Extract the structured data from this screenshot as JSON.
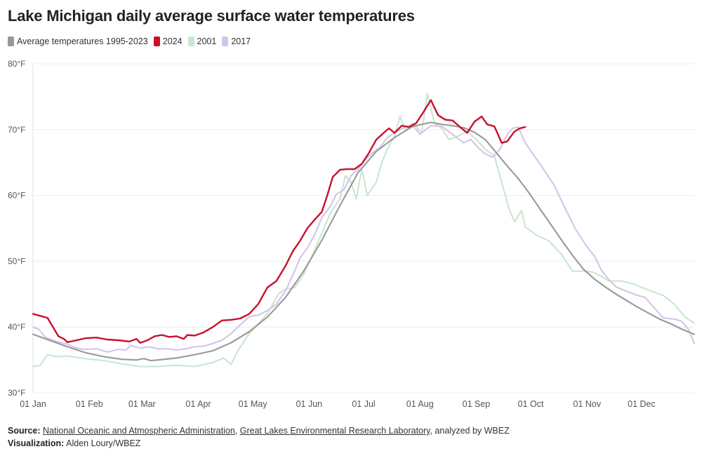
{
  "title": "Lake Michigan daily average surface water temperatures",
  "legend": [
    {
      "label": "Average temperatures 1995-2023",
      "color": "#999999"
    },
    {
      "label": "2024",
      "color": "#c8102e"
    },
    {
      "label": "2001",
      "color": "#c9e6cf"
    },
    {
      "label": "2017",
      "color": "#d5c4ea"
    }
  ],
  "footer": {
    "source_label": "Source:",
    "source_link_1": "National Oceanic and Atmospheric Administration",
    "separator": ", ",
    "source_link_2": "Great Lakes Environmental Research Laboratory",
    "source_suffix": ", analyzed by WBEZ",
    "viz_label": "Visualization:",
    "viz_credit": "Alden Loury/WBEZ"
  },
  "chart_data": {
    "type": "line",
    "xlabel": "",
    "ylabel": "",
    "x_type": "date",
    "xlim": [
      "01 Jan",
      "31 Dec"
    ],
    "ylim": [
      30,
      80
    ],
    "y_ticks": [
      30,
      40,
      50,
      60,
      70,
      80
    ],
    "y_tick_labels": [
      "30°F",
      "40°F",
      "50°F",
      "60°F",
      "70°F",
      "80°F"
    ],
    "x_ticks": [
      1,
      32,
      61,
      92,
      122,
      153,
      183,
      214,
      245,
      275,
      306,
      336
    ],
    "x_tick_labels": [
      "01 Jan",
      "01 Feb",
      "01 Mar",
      "01 Apr",
      "01 May",
      "01 Jun",
      "01 Jul",
      "01 Aug",
      "01 Sep",
      "01 Oct",
      "01 Nov",
      "01 Dec"
    ],
    "grid": true,
    "legend_position": "top-left",
    "series": [
      {
        "name": "2001",
        "color": "#c9e6cf",
        "points": [
          [
            1,
            34
          ],
          [
            5,
            34.2
          ],
          [
            9,
            35.8
          ],
          [
            14,
            35.5
          ],
          [
            20,
            35.6
          ],
          [
            30,
            35.2
          ],
          [
            40,
            34.9
          ],
          [
            50,
            34.4
          ],
          [
            60,
            34
          ],
          [
            70,
            34
          ],
          [
            80,
            34.2
          ],
          [
            90,
            34
          ],
          [
            100,
            34.6
          ],
          [
            106,
            35.3
          ],
          [
            110,
            34.3
          ],
          [
            114,
            36.5
          ],
          [
            120,
            39
          ],
          [
            125,
            40.5
          ],
          [
            130,
            42
          ],
          [
            136,
            45
          ],
          [
            140,
            45.8
          ],
          [
            145,
            46
          ],
          [
            150,
            48
          ],
          [
            155,
            51
          ],
          [
            160,
            54.3
          ],
          [
            165,
            57.5
          ],
          [
            170,
            59.5
          ],
          [
            173,
            63
          ],
          [
            176,
            62
          ],
          [
            179,
            59.5
          ],
          [
            182,
            64
          ],
          [
            185,
            60
          ],
          [
            190,
            62
          ],
          [
            193,
            65
          ],
          [
            196,
            67
          ],
          [
            200,
            69
          ],
          [
            203,
            72
          ],
          [
            206,
            70
          ],
          [
            210,
            71
          ],
          [
            212,
            70.5
          ],
          [
            215,
            69.5
          ],
          [
            218,
            75.5
          ],
          [
            222,
            71
          ],
          [
            226,
            70.2
          ],
          [
            230,
            68.5
          ],
          [
            235,
            69
          ],
          [
            240,
            69.8
          ],
          [
            245,
            68.5
          ],
          [
            250,
            67
          ],
          [
            255,
            66
          ],
          [
            258,
            63
          ],
          [
            261,
            60
          ],
          [
            263,
            58
          ],
          [
            266,
            56
          ],
          [
            270,
            57.7
          ],
          [
            272,
            55.2
          ],
          [
            278,
            54
          ],
          [
            285,
            53.1
          ],
          [
            292,
            51
          ],
          [
            298,
            48.5
          ],
          [
            305,
            48.5
          ],
          [
            310,
            48.3
          ],
          [
            318,
            47
          ],
          [
            325,
            47
          ],
          [
            332,
            46.5
          ],
          [
            340,
            45.6
          ],
          [
            348,
            44.8
          ],
          [
            354,
            43.5
          ],
          [
            360,
            41.5
          ],
          [
            365,
            40.6
          ]
        ]
      },
      {
        "name": "2017",
        "color": "#d5c4ea",
        "points": [
          [
            1,
            40
          ],
          [
            4,
            39.7
          ],
          [
            8,
            38.4
          ],
          [
            14,
            37.8
          ],
          [
            20,
            37.4
          ],
          [
            25,
            36.8
          ],
          [
            30,
            36.6
          ],
          [
            36,
            36.7
          ],
          [
            42,
            36.2
          ],
          [
            48,
            36.6
          ],
          [
            52,
            36.5
          ],
          [
            55,
            37.2
          ],
          [
            60,
            36.8
          ],
          [
            65,
            37
          ],
          [
            70,
            36.7
          ],
          [
            75,
            36.7
          ],
          [
            80,
            36.5
          ],
          [
            85,
            36.7
          ],
          [
            90,
            37
          ],
          [
            95,
            37.1
          ],
          [
            100,
            37.5
          ],
          [
            105,
            38
          ],
          [
            110,
            39
          ],
          [
            115,
            40.3
          ],
          [
            120,
            41.6
          ],
          [
            125,
            41.8
          ],
          [
            130,
            42.5
          ],
          [
            135,
            43.5
          ],
          [
            140,
            45.5
          ],
          [
            145,
            48.5
          ],
          [
            148,
            50.5
          ],
          [
            152,
            52
          ],
          [
            156,
            54
          ],
          [
            160,
            56.6
          ],
          [
            165,
            58.5
          ],
          [
            168,
            60.2
          ],
          [
            172,
            60.8
          ],
          [
            176,
            63
          ],
          [
            180,
            64
          ],
          [
            184,
            65.5
          ],
          [
            188,
            66.5
          ],
          [
            192,
            67.3
          ],
          [
            196,
            68.8
          ],
          [
            200,
            69.5
          ],
          [
            206,
            70.4
          ],
          [
            210,
            70.7
          ],
          [
            214,
            69.3
          ],
          [
            220,
            70.6
          ],
          [
            226,
            70.5
          ],
          [
            232,
            69.3
          ],
          [
            238,
            68
          ],
          [
            242,
            68.5
          ],
          [
            246,
            67.3
          ],
          [
            250,
            66.3
          ],
          [
            254,
            65.8
          ],
          [
            258,
            67
          ],
          [
            262,
            69.2
          ],
          [
            265,
            70.2
          ],
          [
            268,
            70.4
          ],
          [
            272,
            68
          ],
          [
            276,
            66.4
          ],
          [
            282,
            64
          ],
          [
            288,
            61.5
          ],
          [
            294,
            58
          ],
          [
            300,
            54.7
          ],
          [
            306,
            52.2
          ],
          [
            310,
            50.8
          ],
          [
            314,
            48.6
          ],
          [
            318,
            47.2
          ],
          [
            322,
            46.1
          ],
          [
            328,
            45.4
          ],
          [
            334,
            44.8
          ],
          [
            338,
            44.5
          ],
          [
            342,
            43.2
          ],
          [
            348,
            41.4
          ],
          [
            354,
            41.2
          ],
          [
            358,
            40.9
          ],
          [
            362,
            39.6
          ],
          [
            365,
            37.5
          ]
        ]
      },
      {
        "name": "Average temperatures 1995-2023",
        "color": "#999999",
        "points": [
          [
            1,
            38.9
          ],
          [
            10,
            38
          ],
          [
            20,
            37
          ],
          [
            30,
            36.1
          ],
          [
            40,
            35.5
          ],
          [
            50,
            35.1
          ],
          [
            58,
            35
          ],
          [
            62,
            35.2
          ],
          [
            66,
            34.9
          ],
          [
            70,
            35
          ],
          [
            80,
            35.3
          ],
          [
            90,
            35.8
          ],
          [
            100,
            36.4
          ],
          [
            110,
            37.6
          ],
          [
            120,
            39.3
          ],
          [
            130,
            41.5
          ],
          [
            140,
            44.5
          ],
          [
            150,
            48.5
          ],
          [
            160,
            53.2
          ],
          [
            170,
            58.5
          ],
          [
            180,
            63.5
          ],
          [
            190,
            66.7
          ],
          [
            200,
            68.8
          ],
          [
            210,
            70.5
          ],
          [
            220,
            71.1
          ],
          [
            226,
            70.8
          ],
          [
            232,
            70.6
          ],
          [
            238,
            70.3
          ],
          [
            244,
            69.6
          ],
          [
            250,
            68.5
          ],
          [
            256,
            66.5
          ],
          [
            262,
            64.5
          ],
          [
            268,
            62.6
          ],
          [
            274,
            60.4
          ],
          [
            280,
            58
          ],
          [
            286,
            55.6
          ],
          [
            292,
            53.2
          ],
          [
            298,
            50.9
          ],
          [
            304,
            48.8
          ],
          [
            310,
            47.3
          ],
          [
            316,
            46.1
          ],
          [
            322,
            45
          ],
          [
            328,
            44
          ],
          [
            334,
            43
          ],
          [
            340,
            42.1
          ],
          [
            346,
            41.2
          ],
          [
            352,
            40.5
          ],
          [
            358,
            39.7
          ],
          [
            365,
            38.9
          ]
        ]
      },
      {
        "name": "2024",
        "color": "#c8102e",
        "points": [
          [
            1,
            42
          ],
          [
            5,
            41.7
          ],
          [
            9,
            41.4
          ],
          [
            12,
            40
          ],
          [
            15,
            38.6
          ],
          [
            18,
            38.2
          ],
          [
            20,
            37.7
          ],
          [
            25,
            38
          ],
          [
            30,
            38.3
          ],
          [
            36,
            38.4
          ],
          [
            42,
            38.1
          ],
          [
            48,
            38
          ],
          [
            54,
            37.8
          ],
          [
            58,
            38.2
          ],
          [
            60,
            37.6
          ],
          [
            64,
            38
          ],
          [
            68,
            38.6
          ],
          [
            72,
            38.8
          ],
          [
            76,
            38.5
          ],
          [
            80,
            38.6
          ],
          [
            84,
            38.2
          ],
          [
            86,
            38.8
          ],
          [
            90,
            38.7
          ],
          [
            95,
            39.2
          ],
          [
            100,
            40
          ],
          [
            105,
            41
          ],
          [
            110,
            41.1
          ],
          [
            115,
            41.3
          ],
          [
            120,
            42
          ],
          [
            125,
            43.5
          ],
          [
            130,
            46
          ],
          [
            135,
            47
          ],
          [
            140,
            49.3
          ],
          [
            144,
            51.5
          ],
          [
            148,
            53.1
          ],
          [
            152,
            55
          ],
          [
            156,
            56.3
          ],
          [
            160,
            57.5
          ],
          [
            163,
            60
          ],
          [
            166,
            62.8
          ],
          [
            170,
            63.9
          ],
          [
            174,
            64
          ],
          [
            178,
            64
          ],
          [
            182,
            64.8
          ],
          [
            186,
            66.5
          ],
          [
            190,
            68.5
          ],
          [
            194,
            69.5
          ],
          [
            197,
            70.2
          ],
          [
            200,
            69.5
          ],
          [
            204,
            70.6
          ],
          [
            208,
            70.4
          ],
          [
            212,
            71
          ],
          [
            216,
            72.7
          ],
          [
            220,
            74.5
          ],
          [
            224,
            72.2
          ],
          [
            228,
            71.5
          ],
          [
            232,
            71.4
          ],
          [
            236,
            70.4
          ],
          [
            240,
            69.5
          ],
          [
            244,
            71.2
          ],
          [
            248,
            72
          ],
          [
            251,
            70.8
          ],
          [
            255,
            70.5
          ],
          [
            259,
            68
          ],
          [
            262,
            68.2
          ],
          [
            266,
            69.7
          ],
          [
            269,
            70.2
          ],
          [
            272,
            70.4
          ]
        ]
      }
    ]
  }
}
